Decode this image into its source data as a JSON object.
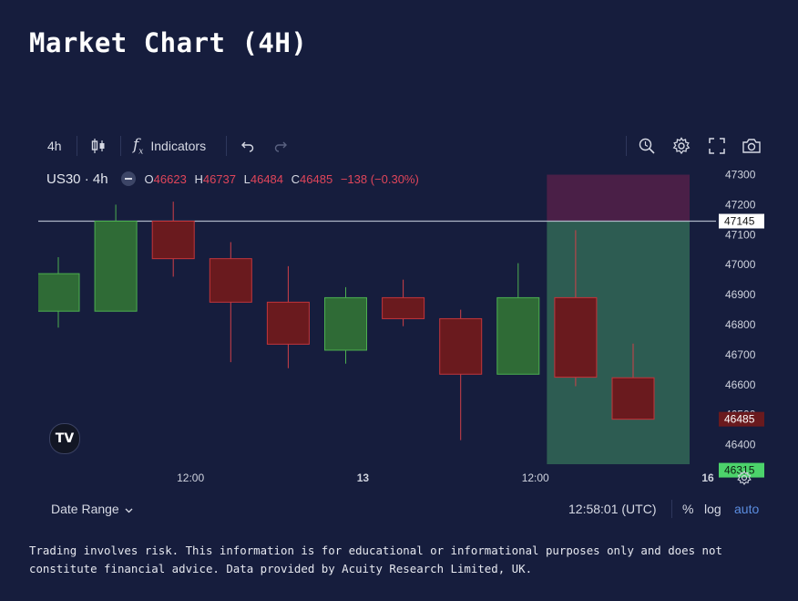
{
  "page": {
    "title": "Market Chart (4H)"
  },
  "toolbar": {
    "interval": "4h",
    "indicators_label": "Indicators",
    "icons": [
      "candles-icon",
      "fx-icon",
      "undo-icon",
      "redo-icon",
      "zoom-icon",
      "gear-icon",
      "fullscreen-icon",
      "camera-icon"
    ]
  },
  "legend": {
    "symbol": "US30 · 4h",
    "o_label": "O",
    "o_value": "46623",
    "h_label": "H",
    "h_value": "46737",
    "l_label": "L",
    "l_value": "46484",
    "c_label": "C",
    "c_value": "46485",
    "change": "−138 (−0.30%)"
  },
  "chart_data": {
    "type": "candlestick",
    "symbol": "US30",
    "interval": "4h",
    "candles": [
      {
        "o": 46845,
        "h": 47025,
        "l": 46790,
        "c": 46970
      },
      {
        "o": 46845,
        "h": 47200,
        "l": 46845,
        "c": 47145
      },
      {
        "o": 47145,
        "h": 47210,
        "l": 46960,
        "c": 47020
      },
      {
        "o": 47020,
        "h": 47075,
        "l": 46675,
        "c": 46875
      },
      {
        "o": 46875,
        "h": 46995,
        "l": 46655,
        "c": 46735
      },
      {
        "o": 46715,
        "h": 46925,
        "l": 46670,
        "c": 46890
      },
      {
        "o": 46890,
        "h": 46950,
        "l": 46795,
        "c": 46820
      },
      {
        "o": 46820,
        "h": 46850,
        "l": 46415,
        "c": 46635
      },
      {
        "o": 46635,
        "h": 47005,
        "l": 46635,
        "c": 46890
      },
      {
        "o": 46890,
        "h": 47115,
        "l": 46595,
        "c": 46625
      },
      {
        "o": 46623,
        "h": 46737,
        "l": 46484,
        "c": 46485
      }
    ],
    "x_ticks": [
      {
        "label": "12:00",
        "index": 2.3
      },
      {
        "label": "13",
        "index": 5.3,
        "bold": true
      },
      {
        "label": "12:00",
        "index": 8.3
      },
      {
        "label": "16",
        "index": 11.3,
        "bold": true
      }
    ],
    "y_ticks": [
      47300,
      47200,
      47100,
      47000,
      46900,
      46800,
      46700,
      46600,
      46500,
      46400
    ],
    "ylim": [
      46335,
      47335
    ],
    "horizontal_line": 47145,
    "price_labels": [
      {
        "value": 47145,
        "text": "47145",
        "style": "line"
      },
      {
        "value": 46485,
        "text": "46485",
        "style": "last"
      },
      {
        "value": 46315,
        "text": "46315",
        "style": "target"
      }
    ],
    "position_zone": {
      "entry": 47145,
      "stop": 47300,
      "target": 46315,
      "from_index": 8.5
    },
    "colors": {
      "up": "#2f6b36",
      "down": "#6a1a1e",
      "up_border": "#4caf50",
      "down_border": "#c2353b",
      "wick_up": "#4caf50",
      "wick_down": "#d04048",
      "profit_zone": "#2d5c52",
      "stop_zone": "#4a1f47",
      "hline": "#aeb6c8"
    }
  },
  "bottom_bar": {
    "date_range": "Date Range",
    "time": "12:58:01 (UTC)",
    "percent": "%",
    "log": "log",
    "auto": "auto"
  },
  "disclaimer": {
    "line1": "Trading involves risk. This information is for educational or informational purposes only and does not",
    "line2": "constitute financial advice. Data provided by Acuity Research Limited, UK."
  },
  "logo": {
    "text": "TV"
  }
}
